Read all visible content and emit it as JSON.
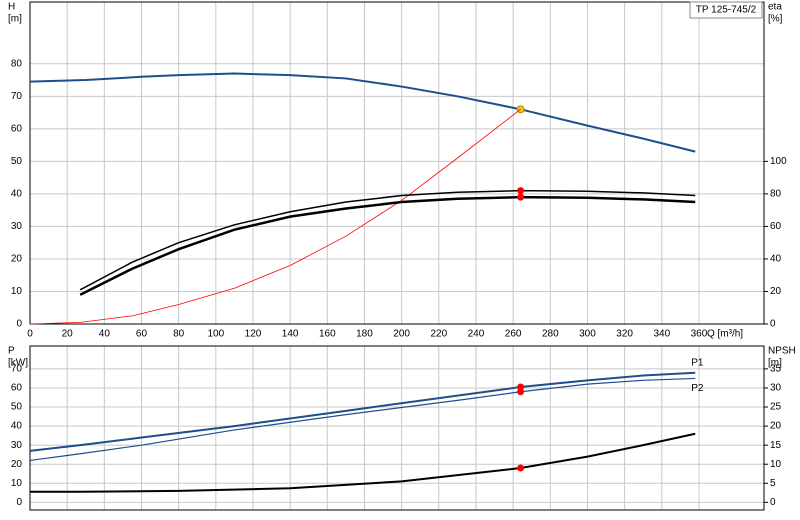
{
  "chart_data": [
    {
      "type": "line",
      "title": "TP 125-745/2",
      "xlabel": "Q [m³/h]",
      "ylabel": "H",
      "yunit": "[m]",
      "y2label": "eta",
      "y2unit": "[%]",
      "xlim": [
        0,
        395
      ],
      "xticks": [
        0,
        20,
        40,
        60,
        80,
        100,
        120,
        140,
        160,
        180,
        200,
        220,
        240,
        260,
        280,
        300,
        320,
        340,
        360
      ],
      "ylim": [
        0,
        99
      ],
      "yticks": [
        0,
        10,
        20,
        30,
        40,
        50,
        60,
        70,
        80
      ],
      "y2lim": [
        0,
        198
      ],
      "y2ticks": [
        0,
        20,
        40,
        60,
        80,
        100
      ],
      "grid": true,
      "series": [
        {
          "color": "#1f4e8c",
          "width": 2,
          "x": [
            0,
            30,
            60,
            80,
            110,
            140,
            170,
            200,
            230,
            264,
            300,
            330,
            358
          ],
          "values": [
            74.5,
            75,
            76,
            76.5,
            77,
            76.5,
            75.5,
            73,
            70,
            66,
            61,
            57,
            53
          ],
          "marker_x": [
            264
          ],
          "marker_values": [
            66
          ],
          "marker_color": "#f5c518"
        },
        {
          "color": "#ff0000",
          "width": 0.8,
          "x": [
            0,
            27,
            55,
            80,
            110,
            140,
            170,
            200,
            230,
            264
          ],
          "values": [
            0,
            0.5,
            2.5,
            6,
            11,
            18,
            27,
            38,
            51,
            66
          ]
        },
        {
          "color": "#000000",
          "width": 1.5,
          "axis": "y2",
          "x": [
            27,
            55,
            80,
            110,
            140,
            170,
            200,
            230,
            264,
            300,
            330,
            358
          ],
          "values": [
            21,
            38,
            50,
            61,
            69,
            75,
            79,
            81,
            82,
            81.6,
            80.6,
            79
          ],
          "marker_x": [
            264
          ],
          "marker_values": [
            82
          ],
          "marker_color": "#ff0000"
        },
        {
          "color": "#000000",
          "width": 2.5,
          "axis": "y2",
          "x": [
            27,
            55,
            80,
            110,
            140,
            170,
            200,
            230,
            264,
            300,
            330,
            358
          ],
          "values": [
            18,
            34,
            46,
            58,
            66,
            71,
            75,
            77,
            78,
            77.6,
            76.6,
            75
          ],
          "marker_x": [
            264
          ],
          "marker_values": [
            78
          ],
          "marker_color": "#ff0000"
        }
      ]
    },
    {
      "type": "line",
      "ylabel": "P",
      "yunit": "[kW]",
      "y2label": "NPSH",
      "y2unit": "[m]",
      "xlim": [
        0,
        395
      ],
      "ylim": [
        -4,
        82
      ],
      "yticks": [
        0,
        10,
        20,
        30,
        40,
        50,
        60,
        70
      ],
      "y2lim": [
        -2,
        41
      ],
      "y2ticks": [
        0,
        5,
        10,
        15,
        20,
        25,
        30,
        35
      ],
      "grid": true,
      "series": [
        {
          "name": "P1",
          "color": "#1f4e8c",
          "width": 2,
          "x": [
            0,
            27,
            60,
            110,
            170,
            230,
            264,
            300,
            330,
            358
          ],
          "values": [
            27,
            30,
            34,
            40,
            48,
            56,
            60.5,
            64,
            66.5,
            68
          ],
          "marker_x": [
            264
          ],
          "marker_values": [
            60.5
          ],
          "marker_color": "#ff0000"
        },
        {
          "name": "P2",
          "color": "#1f4e8c",
          "width": 1.2,
          "x": [
            0,
            27,
            60,
            110,
            170,
            230,
            264,
            300,
            330,
            358
          ],
          "values": [
            22,
            25.5,
            30,
            38,
            46,
            53.5,
            58,
            62,
            64,
            65
          ],
          "marker_x": [
            264
          ],
          "marker_values": [
            58
          ],
          "marker_color": "#ff0000"
        },
        {
          "color": "#000000",
          "width": 2,
          "axis": "y2",
          "x": [
            0,
            27,
            80,
            140,
            200,
            264,
            300,
            330,
            358
          ],
          "values": [
            2.8,
            2.8,
            3,
            3.7,
            5.5,
            9,
            12,
            15,
            18
          ],
          "marker_x": [
            264
          ],
          "marker_values": [
            9
          ],
          "marker_color": "#ff0000"
        }
      ]
    }
  ]
}
